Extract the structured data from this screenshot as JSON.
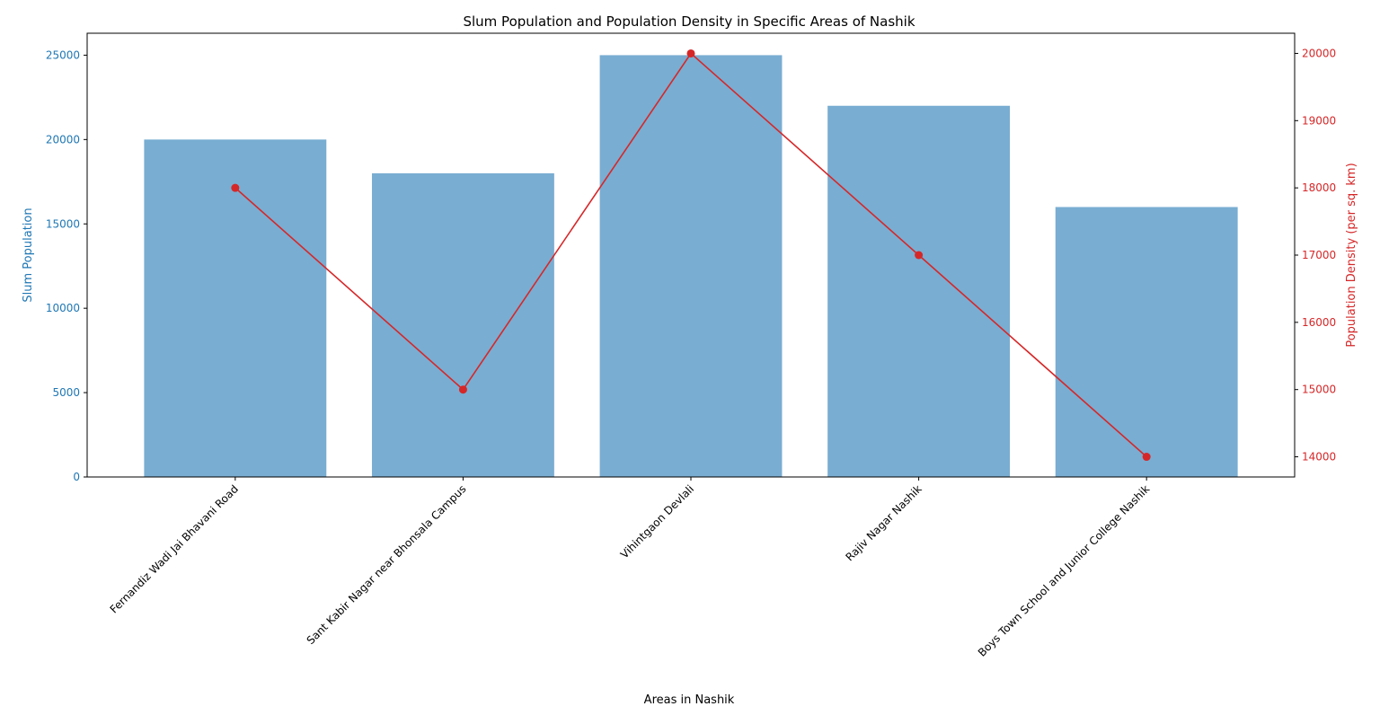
{
  "chart_data": {
    "type": "bar",
    "title": "Slum Population and Population Density in Specific Areas of Nashik",
    "xlabel": "Areas in Nashik",
    "categories": [
      "Fernandiz Wadi Jai Bhavani Road",
      "Sant Kabir Nagar near Bhonsala Campus",
      "Vihintgaon Devlali",
      "Rajiv Nagar Nashik",
      "Boys Town School and Junior College Nashik"
    ],
    "left_axis": {
      "label": "Slum Population",
      "ylim": [
        0,
        26300
      ],
      "ticks": [
        0,
        5000,
        10000,
        15000,
        20000,
        25000
      ],
      "color": "#1f77b4"
    },
    "right_axis": {
      "label": "Population Density (per sq. km)",
      "ylim": [
        13700,
        20300
      ],
      "ticks": [
        14000,
        15000,
        16000,
        17000,
        18000,
        19000,
        20000
      ],
      "color": "#d62728"
    },
    "series": [
      {
        "type": "bar",
        "axis": "left",
        "values": [
          20000,
          18000,
          25000,
          22000,
          16000
        ],
        "color": "#1f77b4",
        "opacity": 0.6
      },
      {
        "type": "line",
        "axis": "right",
        "values": [
          18000,
          15000,
          20000,
          17000,
          14000
        ],
        "color": "#d62728",
        "marker": "circle"
      }
    ],
    "grid": false,
    "legend": "none"
  }
}
